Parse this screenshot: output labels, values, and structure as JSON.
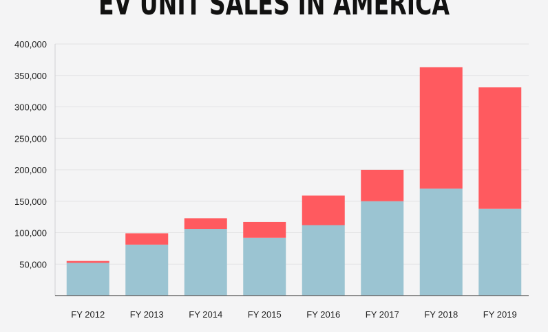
{
  "chart_data": {
    "type": "bar",
    "stacked": true,
    "title": "EV UNIT SALES IN AMERICA",
    "categories": [
      "FY 2012",
      "FY 2013",
      "FY 2014",
      "FY 2015",
      "FY 2016",
      "FY 2017",
      "FY 2018",
      "FY 2019"
    ],
    "series": [
      {
        "values": [
          52000,
          81000,
          106000,
          92000,
          112000,
          150000,
          170000,
          138000
        ],
        "color": "#9bc4d2"
      },
      {
        "values": [
          3000,
          18000,
          17000,
          25000,
          47000,
          50000,
          193000,
          193000
        ],
        "color": "#ff5a5f"
      }
    ],
    "yticks": [
      50000,
      100000,
      150000,
      200000,
      250000,
      300000,
      350000,
      400000
    ],
    "ytick_labels": [
      "50,000",
      "100,000",
      "150,000",
      "200,000",
      "250,000",
      "300,000",
      "350,000",
      "400,000"
    ],
    "ylim": [
      0,
      400000
    ],
    "xlabel": "",
    "ylabel": "",
    "grid": true,
    "legend": "none"
  }
}
